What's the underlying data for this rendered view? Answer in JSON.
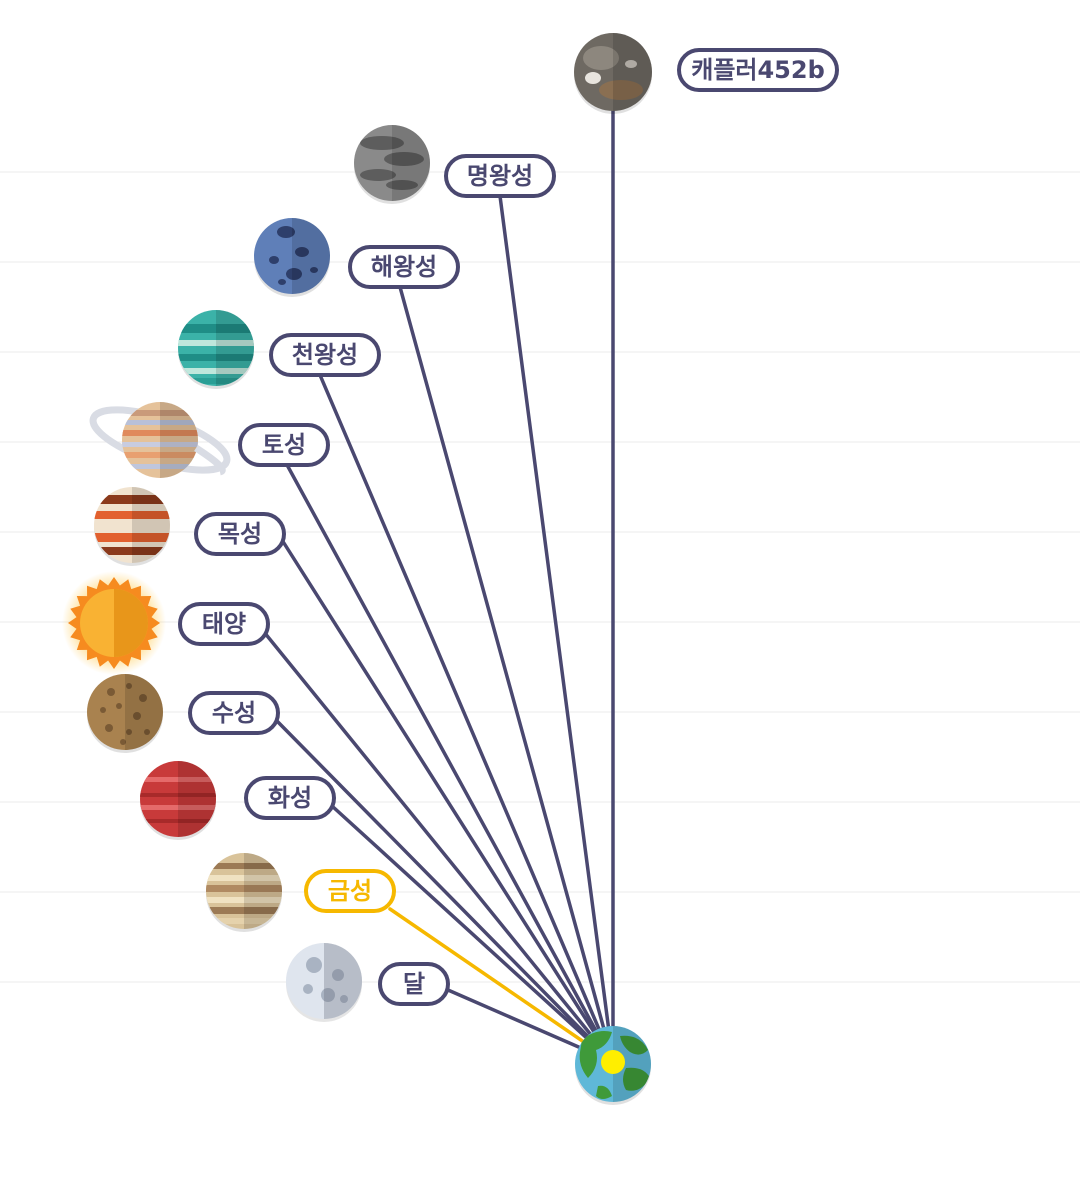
{
  "origin": {
    "name": "earth",
    "marker_color": "#ffee00"
  },
  "colors": {
    "line": "#4a4870",
    "active": "#f6b800",
    "gridline": "#ebebeb"
  },
  "bodies": [
    {
      "id": "kepler",
      "label": "캐플러452b",
      "active": false
    },
    {
      "id": "pluto",
      "label": "명왕성",
      "active": false
    },
    {
      "id": "neptune",
      "label": "해왕성",
      "active": false
    },
    {
      "id": "uranus",
      "label": "천왕성",
      "active": false
    },
    {
      "id": "saturn",
      "label": "토성",
      "active": false
    },
    {
      "id": "jupiter",
      "label": "목성",
      "active": false
    },
    {
      "id": "sun",
      "label": "태양",
      "active": false
    },
    {
      "id": "mercury",
      "label": "수성",
      "active": false
    },
    {
      "id": "mars",
      "label": "화성",
      "active": false
    },
    {
      "id": "venus",
      "label": "금성",
      "active": true
    },
    {
      "id": "moon",
      "label": "달",
      "active": false
    }
  ]
}
